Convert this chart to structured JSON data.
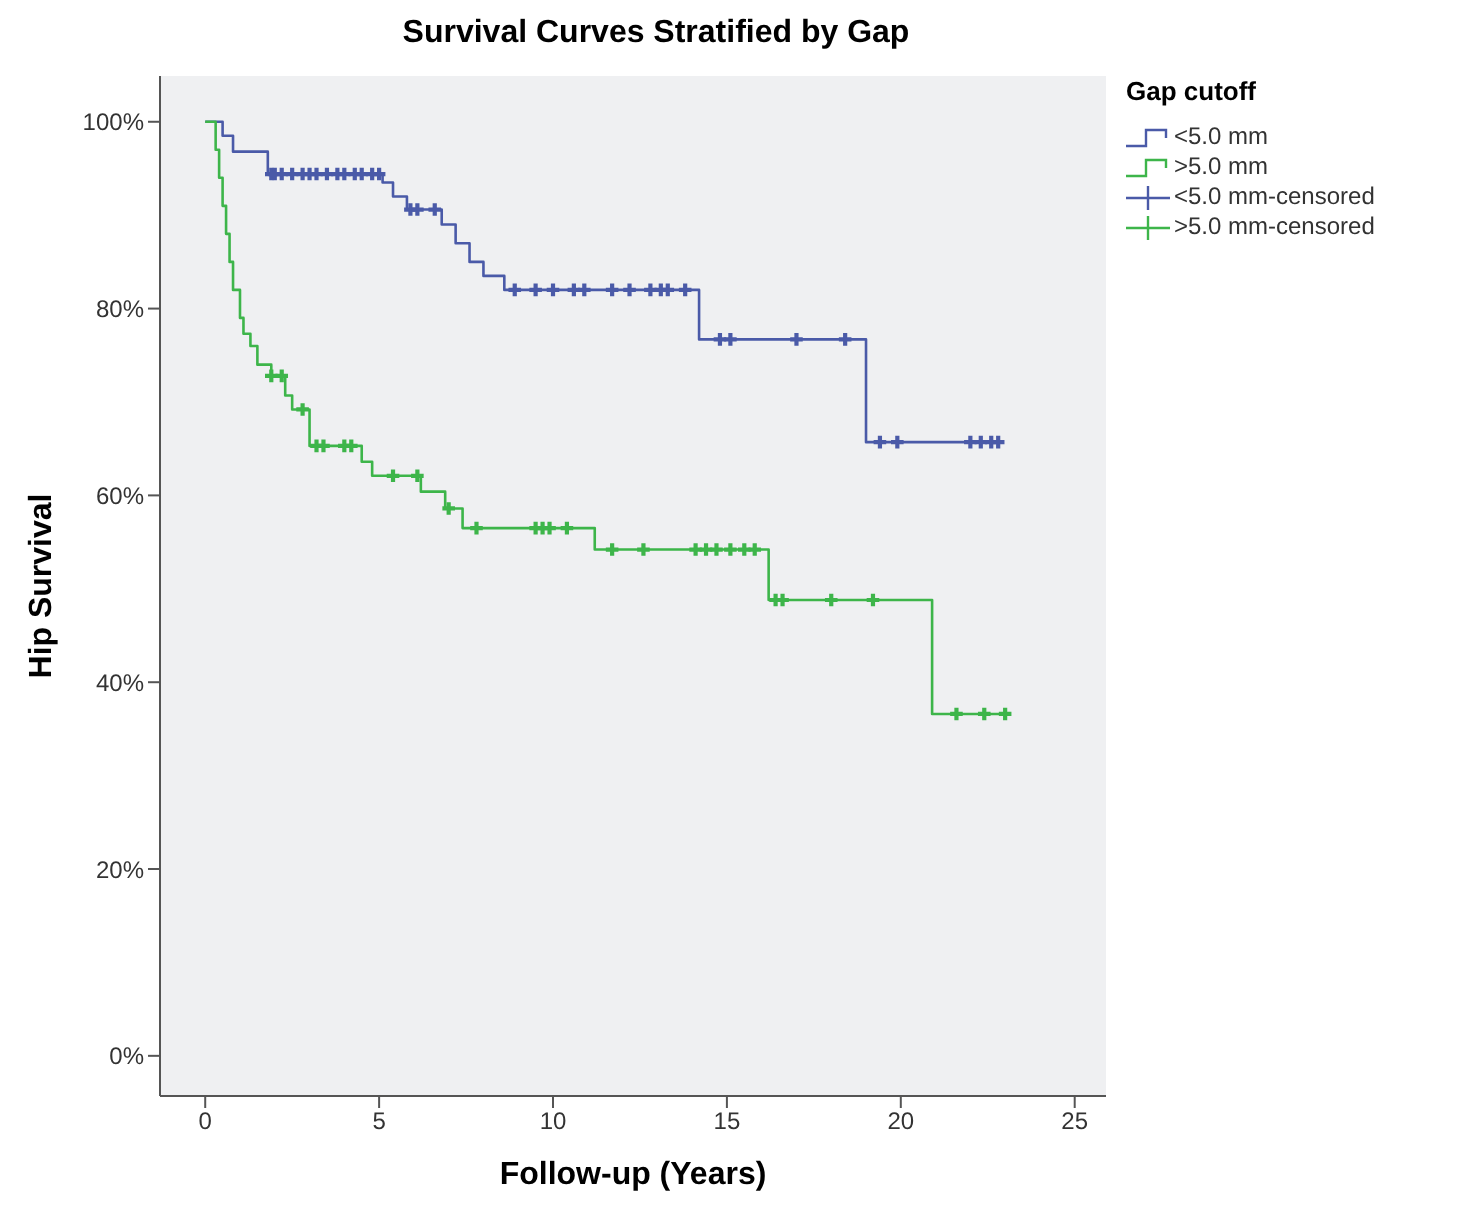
{
  "chart_data": {
    "type": "step",
    "title": "Survival Curves Stratified by Gap",
    "xlabel": "Follow-up (Years)",
    "ylabel": "Hip Survival",
    "legend_title": "Gap cutoff",
    "legend": "top right",
    "line_style": "solid",
    "xlim": [
      -1.3,
      25.9
    ],
    "ylim": [
      -4.3,
      104.9
    ],
    "xticks": [
      0,
      5,
      10,
      15,
      20,
      25
    ],
    "yticks": [
      {
        "value": 0,
        "label": "0%"
      },
      {
        "value": 20,
        "label": "20%"
      },
      {
        "value": 40,
        "label": "40%"
      },
      {
        "value": 60,
        "label": "60%"
      },
      {
        "value": 80,
        "label": "80%"
      },
      {
        "value": 100,
        "label": "100%"
      }
    ],
    "series": [
      {
        "name": "<5.0 mm",
        "color": "#4a5aa8",
        "x": [
          0,
          0.5,
          0.8,
          1.8,
          5.1,
          5.4,
          5.8,
          6.8,
          7.2,
          7.6,
          8.0,
          8.6,
          14.2,
          19.0,
          22.8
        ],
        "values": [
          100,
          98.5,
          96.8,
          94.4,
          93.5,
          92,
          90.6,
          89,
          87,
          85,
          83.5,
          82,
          76.7,
          65.7,
          65.7
        ]
      },
      {
        "name": ">5.0 mm",
        "color": "#3db54a",
        "x": [
          0,
          0.3,
          0.4,
          0.5,
          0.6,
          0.7,
          0.8,
          1.0,
          1.1,
          1.3,
          1.5,
          1.9,
          2.3,
          2.5,
          3.0,
          4.5,
          4.8,
          6.2,
          6.9,
          7.4,
          11.2,
          16.2,
          20.9,
          23.1
        ],
        "values": [
          100,
          97,
          94,
          91,
          88,
          85,
          82,
          79,
          77.3,
          76,
          74,
          72.8,
          70.7,
          69.2,
          65.3,
          63.6,
          62.1,
          60.4,
          58.6,
          56.5,
          54.2,
          48.8,
          36.6,
          36.6
        ]
      },
      {
        "name": "<5.0 mm-censored",
        "type": "scatter",
        "marker": "cross",
        "color": "#4a5aa8",
        "x": [
          1.9,
          2.0,
          2.2,
          2.5,
          2.8,
          3.0,
          3.2,
          3.5,
          3.8,
          4.0,
          4.3,
          4.5,
          4.8,
          5.0,
          5.9,
          6.1,
          6.6,
          8.9,
          9.5,
          10.0,
          10.6,
          10.9,
          11.7,
          12.2,
          12.8,
          13.1,
          13.3,
          13.8,
          14.8,
          15.1,
          17.0,
          18.4,
          19.4,
          19.9,
          22.0,
          22.3,
          22.6,
          22.8
        ],
        "values": [
          94.4,
          94.4,
          94.4,
          94.4,
          94.4,
          94.4,
          94.4,
          94.4,
          94.4,
          94.4,
          94.4,
          94.4,
          94.4,
          94.4,
          90.6,
          90.6,
          90.6,
          82,
          82,
          82,
          82,
          82,
          82,
          82,
          82,
          82,
          82,
          82,
          76.7,
          76.7,
          76.7,
          76.7,
          65.7,
          65.7,
          65.7,
          65.7,
          65.7,
          65.7
        ]
      },
      {
        "name": ">5.0 mm-censored",
        "type": "scatter",
        "marker": "cross",
        "color": "#3db54a",
        "x": [
          1.9,
          2.2,
          2.8,
          3.2,
          3.4,
          4.0,
          4.2,
          5.4,
          6.1,
          7.0,
          7.8,
          9.5,
          9.7,
          9.9,
          10.4,
          11.7,
          12.6,
          14.1,
          14.4,
          14.7,
          15.1,
          15.5,
          15.8,
          16.4,
          16.6,
          18.0,
          19.2,
          21.6,
          22.4,
          23.0
        ],
        "values": [
          72.8,
          72.8,
          69.2,
          65.3,
          65.3,
          65.3,
          65.3,
          62.1,
          62.1,
          58.6,
          56.5,
          56.5,
          56.5,
          56.5,
          56.5,
          54.2,
          54.2,
          54.2,
          54.2,
          54.2,
          54.2,
          54.2,
          54.2,
          48.8,
          48.8,
          48.8,
          48.8,
          36.6,
          36.6,
          36.6
        ]
      }
    ]
  }
}
